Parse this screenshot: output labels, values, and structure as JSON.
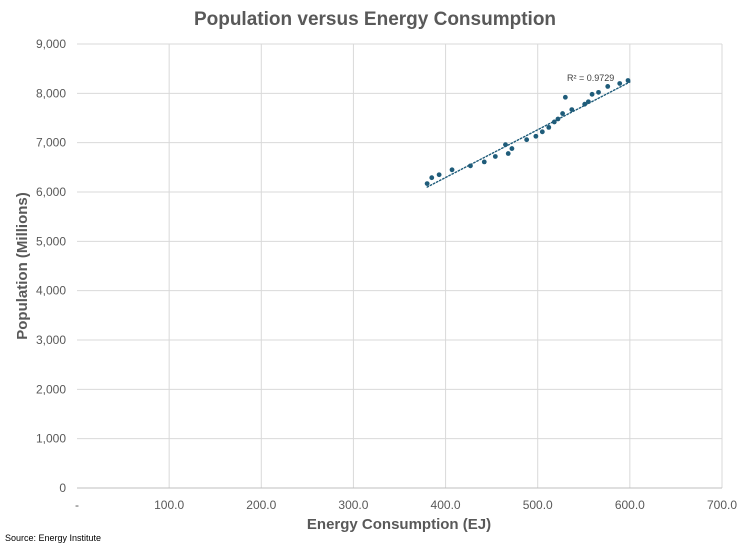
{
  "chart_data": {
    "type": "scatter",
    "title": "Population versus Energy Consumption",
    "xlabel": "Energy Consumption (EJ)",
    "ylabel": "Population (Millions)",
    "xlim": [
      0,
      700
    ],
    "ylim": [
      0,
      9000
    ],
    "x_ticks": [
      0,
      100,
      200,
      300,
      400,
      500,
      600,
      700
    ],
    "x_tick_labels": [
      "-",
      "100.0",
      "200.0",
      "300.0",
      "400.0",
      "500.0",
      "600.0",
      "700.0"
    ],
    "y_ticks": [
      0,
      1000,
      2000,
      3000,
      4000,
      5000,
      6000,
      7000,
      8000,
      9000
    ],
    "y_tick_labels": [
      "0",
      "1,000",
      "2,000",
      "3,000",
      "4,000",
      "5,000",
      "6,000",
      "7,000",
      "8,000",
      "9,000"
    ],
    "grid": true,
    "marker_color": "#1f5c7a",
    "trendline": {
      "type": "linear",
      "color": "#1f5c7a",
      "style": "dotted",
      "x_range": [
        380,
        600
      ],
      "y_range": [
        6100,
        8230
      ],
      "label": "R² = 0.9729"
    },
    "points": [
      {
        "x": 380,
        "y": 6170
      },
      {
        "x": 385,
        "y": 6290
      },
      {
        "x": 393,
        "y": 6350
      },
      {
        "x": 407,
        "y": 6450
      },
      {
        "x": 427,
        "y": 6530
      },
      {
        "x": 442,
        "y": 6610
      },
      {
        "x": 454,
        "y": 6720
      },
      {
        "x": 465,
        "y": 6960
      },
      {
        "x": 468,
        "y": 6780
      },
      {
        "x": 472,
        "y": 6880
      },
      {
        "x": 488,
        "y": 7060
      },
      {
        "x": 498,
        "y": 7130
      },
      {
        "x": 505,
        "y": 7220
      },
      {
        "x": 512,
        "y": 7310
      },
      {
        "x": 518,
        "y": 7420
      },
      {
        "x": 522,
        "y": 7480
      },
      {
        "x": 527,
        "y": 7590
      },
      {
        "x": 530,
        "y": 7920
      },
      {
        "x": 537,
        "y": 7670
      },
      {
        "x": 551,
        "y": 7780
      },
      {
        "x": 555,
        "y": 7830
      },
      {
        "x": 559,
        "y": 7980
      },
      {
        "x": 566,
        "y": 8020
      },
      {
        "x": 576,
        "y": 8140
      },
      {
        "x": 589,
        "y": 8200
      },
      {
        "x": 598,
        "y": 8260
      }
    ]
  },
  "source": "Source: Energy Institute"
}
